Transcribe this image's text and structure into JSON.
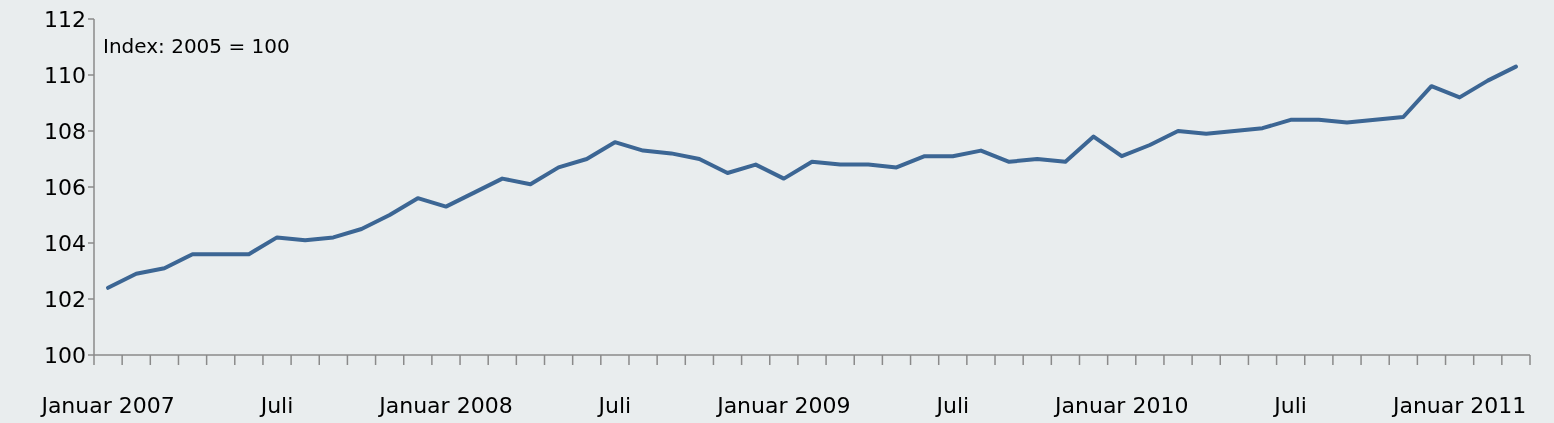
{
  "chart_data": {
    "type": "line",
    "annotations": [
      "Index: 2005 = 100"
    ],
    "categories": [
      "Januar 2007",
      null,
      null,
      null,
      null,
      null,
      "Juli",
      null,
      null,
      null,
      null,
      null,
      "Januar 2008",
      null,
      null,
      null,
      null,
      null,
      "Juli",
      null,
      null,
      null,
      null,
      null,
      "Januar 2009",
      null,
      null,
      null,
      null,
      null,
      "Juli",
      null,
      null,
      null,
      null,
      null,
      "Januar 2010",
      null,
      null,
      null,
      null,
      null,
      "Juli",
      null,
      null,
      null,
      null,
      null,
      "Januar 2011",
      null,
      null
    ],
    "series": [
      {
        "color": "#3c6694",
        "values": [
          102.4,
          102.9,
          103.1,
          103.6,
          103.6,
          103.6,
          104.2,
          104.1,
          104.2,
          104.5,
          105.0,
          105.6,
          105.3,
          105.8,
          106.3,
          106.1,
          106.7,
          107.0,
          107.6,
          107.3,
          107.2,
          107.0,
          106.5,
          106.8,
          106.3,
          106.9,
          106.8,
          106.8,
          106.7,
          107.1,
          107.1,
          107.3,
          106.9,
          107.0,
          106.9,
          107.8,
          107.1,
          107.5,
          108.0,
          107.9,
          108.0,
          108.1,
          108.4,
          108.4,
          108.3,
          108.4,
          108.5,
          109.6,
          109.2,
          109.8,
          110.3
        ]
      }
    ],
    "ylim": [
      100,
      112
    ],
    "yticks": [
      100,
      102,
      104,
      106,
      108,
      110,
      112
    ],
    "grid": false,
    "marker": "none",
    "line_style": "solid"
  }
}
